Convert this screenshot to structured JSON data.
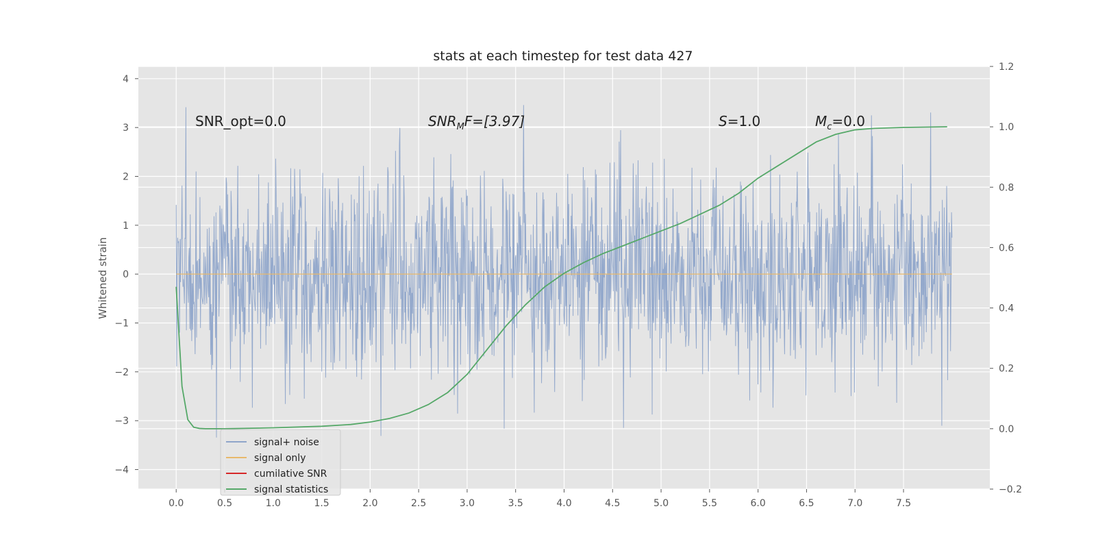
{
  "chart_data": {
    "type": "line",
    "title": "stats at each timestep for test data 427",
    "xlabel": "",
    "ylabel": "Whitened strain",
    "y2label": "",
    "xlim": [
      -0.39,
      8.39
    ],
    "ylim": [
      -4.4,
      4.25
    ],
    "y2lim": [
      -0.2,
      1.2
    ],
    "grid": true,
    "background": "#e5e5e5",
    "legend_position": "lower-left",
    "xticks": [
      "0.0",
      "0.5",
      "1.0",
      "1.5",
      "2.0",
      "2.5",
      "3.0",
      "3.5",
      "4.0",
      "4.5",
      "5.0",
      "5.5",
      "6.0",
      "6.5",
      "7.0",
      "7.5"
    ],
    "yticks": [
      "4",
      "3",
      "2",
      "1",
      "0",
      "−1",
      "−2",
      "−3",
      "−4"
    ],
    "y2ticks": [
      "1.2",
      "1.0",
      "0.8",
      "0.6",
      "0.4",
      "0.2",
      "0.0",
      "−0.2"
    ],
    "annotations": {
      "snr_opt": "SNR_opt=0.0",
      "snr_mf": {
        "base": "SNR",
        "sub": "M",
        "rest": "F=[3.97]"
      },
      "s": {
        "var": "S",
        "rest": "=1.0"
      },
      "mc": {
        "var": "M",
        "sub": "c",
        "rest": "=0.0"
      }
    },
    "series": [
      {
        "name": "signal+ noise",
        "color": "#8fa5ca",
        "axis": "left",
        "noise": {
          "x_start": 0.0,
          "x_end": 8.0,
          "samples": 1600,
          "sigma": 1.05,
          "clip": [
            -4.0,
            3.9
          ]
        }
      },
      {
        "name": "signal only",
        "color": "#e8b86b",
        "axis": "left",
        "x": [
          0.0,
          8.0
        ],
        "y": [
          0.0,
          0.0
        ]
      },
      {
        "name": "cumilative SNR",
        "color": "#d62728",
        "axis": "left",
        "x": [],
        "y": []
      },
      {
        "name": "signal statistics",
        "color": "#55a868",
        "axis": "right",
        "x": [
          0.0,
          0.06,
          0.12,
          0.18,
          0.24,
          0.3,
          0.5,
          1.0,
          1.5,
          1.8,
          2.0,
          2.2,
          2.4,
          2.6,
          2.8,
          3.0,
          3.2,
          3.4,
          3.6,
          3.8,
          4.0,
          4.2,
          4.4,
          4.6,
          4.8,
          5.0,
          5.2,
          5.4,
          5.6,
          5.8,
          6.0,
          6.2,
          6.4,
          6.6,
          6.8,
          7.0,
          7.2,
          7.5,
          7.95
        ],
        "y": [
          0.47,
          0.14,
          0.03,
          0.005,
          0.001,
          0.0,
          0.0,
          0.003,
          0.008,
          0.014,
          0.022,
          0.034,
          0.052,
          0.08,
          0.12,
          0.18,
          0.26,
          0.34,
          0.41,
          0.47,
          0.515,
          0.55,
          0.58,
          0.605,
          0.63,
          0.655,
          0.68,
          0.71,
          0.74,
          0.78,
          0.83,
          0.87,
          0.91,
          0.95,
          0.975,
          0.99,
          0.995,
          0.998,
          1.0
        ]
      }
    ]
  }
}
